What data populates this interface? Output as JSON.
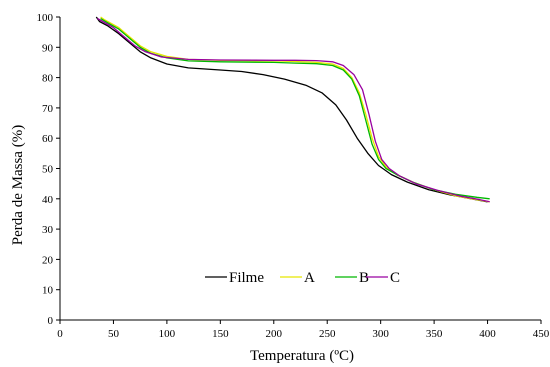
{
  "chart_data": {
    "type": "line",
    "xlabel": "Temperatura (ºC)",
    "ylabel": "Perda de Massa (%)",
    "xlim": [
      0,
      450
    ],
    "ylim": [
      0,
      100
    ],
    "xticks": [
      0,
      50,
      100,
      150,
      200,
      250,
      300,
      350,
      400,
      450
    ],
    "yticks": [
      0,
      10,
      20,
      30,
      40,
      50,
      60,
      70,
      80,
      90,
      100
    ],
    "grid": false,
    "legend": "bottom-center",
    "series": [
      {
        "name": "Filme",
        "color": "#000000",
        "points": [
          [
            34,
            100
          ],
          [
            37,
            98.5
          ],
          [
            45,
            97
          ],
          [
            55,
            94.5
          ],
          [
            65,
            91.5
          ],
          [
            75,
            88.5
          ],
          [
            85,
            86.5
          ],
          [
            100,
            84.5
          ],
          [
            120,
            83.2
          ],
          [
            150,
            82.5
          ],
          [
            170,
            82
          ],
          [
            190,
            81
          ],
          [
            210,
            79.5
          ],
          [
            230,
            77.5
          ],
          [
            245,
            75
          ],
          [
            258,
            71
          ],
          [
            268,
            66
          ],
          [
            278,
            60
          ],
          [
            288,
            55
          ],
          [
            298,
            51
          ],
          [
            310,
            48
          ],
          [
            325,
            45.5
          ],
          [
            345,
            43
          ],
          [
            365,
            41.3
          ],
          [
            385,
            40
          ],
          [
            400,
            39
          ]
        ]
      },
      {
        "name": "A",
        "color": "#e6e600",
        "points": [
          [
            38,
            100
          ],
          [
            42,
            99
          ],
          [
            55,
            96.5
          ],
          [
            65,
            93.5
          ],
          [
            75,
            90.5
          ],
          [
            85,
            88.5
          ],
          [
            100,
            87
          ],
          [
            120,
            86
          ],
          [
            150,
            85.7
          ],
          [
            200,
            85.5
          ],
          [
            220,
            85.3
          ],
          [
            240,
            85
          ],
          [
            255,
            84.5
          ],
          [
            265,
            83
          ],
          [
            273,
            80
          ],
          [
            280,
            75
          ],
          [
            286,
            68
          ],
          [
            292,
            60
          ],
          [
            298,
            54
          ],
          [
            305,
            50.5
          ],
          [
            315,
            48
          ],
          [
            330,
            45.5
          ],
          [
            350,
            43
          ],
          [
            370,
            41
          ],
          [
            390,
            39.7
          ],
          [
            402,
            39
          ]
        ]
      },
      {
        "name": "B",
        "color": "#00b800",
        "points": [
          [
            38,
            99.5
          ],
          [
            45,
            98
          ],
          [
            55,
            96
          ],
          [
            65,
            93
          ],
          [
            75,
            90
          ],
          [
            85,
            88
          ],
          [
            100,
            86.5
          ],
          [
            120,
            85.5
          ],
          [
            150,
            85.2
          ],
          [
            200,
            85
          ],
          [
            220,
            84.8
          ],
          [
            240,
            84.6
          ],
          [
            255,
            84
          ],
          [
            265,
            82.5
          ],
          [
            273,
            79.5
          ],
          [
            280,
            74
          ],
          [
            286,
            66
          ],
          [
            292,
            58
          ],
          [
            298,
            53
          ],
          [
            305,
            50
          ],
          [
            315,
            48
          ],
          [
            330,
            45.5
          ],
          [
            350,
            43
          ],
          [
            370,
            41.5
          ],
          [
            390,
            40.5
          ],
          [
            402,
            40
          ]
        ]
      },
      {
        "name": "C",
        "color": "#9900a0",
        "points": [
          [
            35,
            99.5
          ],
          [
            40,
            98.5
          ],
          [
            50,
            96.5
          ],
          [
            60,
            93.5
          ],
          [
            70,
            90.5
          ],
          [
            80,
            88.5
          ],
          [
            95,
            86.8
          ],
          [
            120,
            86
          ],
          [
            150,
            85.8
          ],
          [
            200,
            85.7
          ],
          [
            220,
            85.7
          ],
          [
            240,
            85.6
          ],
          [
            255,
            85.2
          ],
          [
            265,
            84
          ],
          [
            275,
            81
          ],
          [
            283,
            76
          ],
          [
            289,
            68
          ],
          [
            295,
            59
          ],
          [
            301,
            53
          ],
          [
            308,
            50
          ],
          [
            318,
            47.5
          ],
          [
            333,
            45
          ],
          [
            353,
            42.8
          ],
          [
            373,
            41
          ],
          [
            393,
            39.7
          ],
          [
            402,
            39
          ]
        ]
      }
    ]
  }
}
